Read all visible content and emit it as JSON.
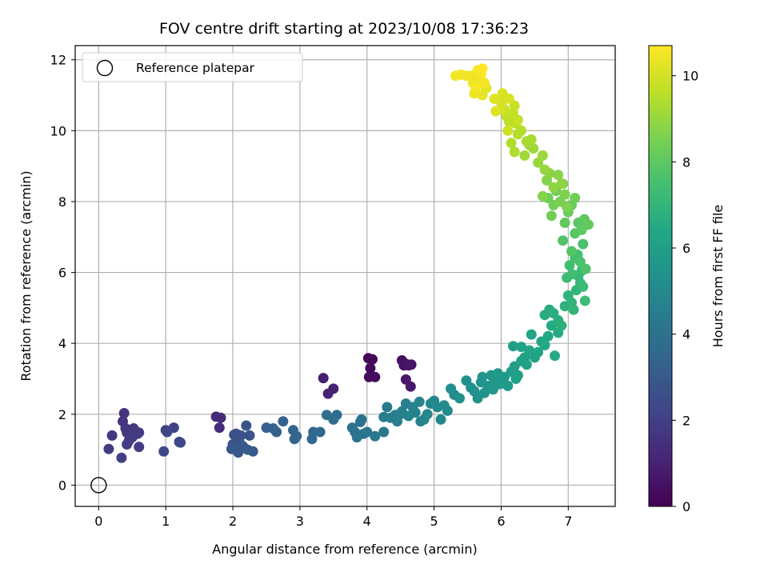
{
  "chart_data": {
    "type": "scatter",
    "title": "FOV centre drift starting at 2023/10/08 17:36:23",
    "xlabel": "Angular distance from reference (arcmin)",
    "ylabel": "Rotation from reference (arcmin)",
    "xlim": [
      -0.35,
      7.7
    ],
    "ylim": [
      -0.6,
      12.4
    ],
    "xticks": [
      0,
      1,
      2,
      3,
      4,
      5,
      6,
      7
    ],
    "yticks": [
      0,
      2,
      4,
      6,
      8,
      10,
      12
    ],
    "grid": true,
    "legend": {
      "placement": "top-left",
      "entries": [
        "Reference platepar"
      ]
    },
    "reference_point": {
      "x": 0,
      "y": 0
    },
    "colorbar": {
      "label": "Hours from first FF file",
      "range": [
        0,
        10.7
      ],
      "ticks": [
        0,
        2,
        4,
        6,
        8,
        10
      ],
      "colormap": "viridis"
    },
    "points": [
      {
        "x": 4.02,
        "y": 3.58,
        "h": 0.1
      },
      {
        "x": 4.08,
        "y": 3.55,
        "h": 0.2
      },
      {
        "x": 4.05,
        "y": 3.3,
        "h": 0.2
      },
      {
        "x": 4.03,
        "y": 3.05,
        "h": 0.3
      },
      {
        "x": 4.12,
        "y": 3.05,
        "h": 0.3
      },
      {
        "x": 4.52,
        "y": 3.52,
        "h": 0.4
      },
      {
        "x": 4.58,
        "y": 3.42,
        "h": 0.4
      },
      {
        "x": 4.55,
        "y": 3.38,
        "h": 0.5
      },
      {
        "x": 4.66,
        "y": 3.4,
        "h": 0.5
      },
      {
        "x": 4.62,
        "y": 3.38,
        "h": 0.6
      },
      {
        "x": 4.58,
        "y": 2.98,
        "h": 0.7
      },
      {
        "x": 4.65,
        "y": 2.78,
        "h": 0.7
      },
      {
        "x": 3.35,
        "y": 3.02,
        "h": 0.9
      },
      {
        "x": 3.5,
        "y": 2.72,
        "h": 1.0
      },
      {
        "x": 3.42,
        "y": 2.58,
        "h": 1.0
      },
      {
        "x": 1.75,
        "y": 1.93,
        "h": 1.3
      },
      {
        "x": 1.82,
        "y": 1.9,
        "h": 1.3
      },
      {
        "x": 1.8,
        "y": 1.62,
        "h": 1.4
      },
      {
        "x": 0.38,
        "y": 2.03,
        "h": 1.6
      },
      {
        "x": 0.36,
        "y": 1.8,
        "h": 1.6
      },
      {
        "x": 0.2,
        "y": 1.4,
        "h": 1.7
      },
      {
        "x": 0.4,
        "y": 1.6,
        "h": 1.7
      },
      {
        "x": 0.42,
        "y": 1.48,
        "h": 1.7
      },
      {
        "x": 0.52,
        "y": 1.6,
        "h": 1.8
      },
      {
        "x": 0.58,
        "y": 1.45,
        "h": 1.8
      },
      {
        "x": 0.6,
        "y": 1.48,
        "h": 1.8
      },
      {
        "x": 0.5,
        "y": 1.35,
        "h": 1.8
      },
      {
        "x": 0.45,
        "y": 1.25,
        "h": 1.9
      },
      {
        "x": 0.42,
        "y": 1.15,
        "h": 1.9
      },
      {
        "x": 0.6,
        "y": 1.08,
        "h": 1.9
      },
      {
        "x": 0.15,
        "y": 1.02,
        "h": 1.9
      },
      {
        "x": 0.34,
        "y": 0.77,
        "h": 2.0
      },
      {
        "x": 1.0,
        "y": 1.55,
        "h": 2.1
      },
      {
        "x": 1.12,
        "y": 1.62,
        "h": 2.1
      },
      {
        "x": 1.02,
        "y": 1.5,
        "h": 2.2
      },
      {
        "x": 1.2,
        "y": 1.22,
        "h": 2.2
      },
      {
        "x": 1.22,
        "y": 1.2,
        "h": 2.3
      },
      {
        "x": 0.97,
        "y": 0.95,
        "h": 2.3
      },
      {
        "x": 2.02,
        "y": 1.42,
        "h": 2.6
      },
      {
        "x": 2.05,
        "y": 1.45,
        "h": 2.6
      },
      {
        "x": 2.12,
        "y": 1.4,
        "h": 2.7
      },
      {
        "x": 2.2,
        "y": 1.68,
        "h": 2.7
      },
      {
        "x": 2.25,
        "y": 1.4,
        "h": 2.7
      },
      {
        "x": 2.1,
        "y": 1.2,
        "h": 2.8
      },
      {
        "x": 2.0,
        "y": 1.15,
        "h": 2.8
      },
      {
        "x": 1.98,
        "y": 1.02,
        "h": 2.9
      },
      {
        "x": 2.08,
        "y": 0.92,
        "h": 2.9
      },
      {
        "x": 2.15,
        "y": 1.1,
        "h": 2.9
      },
      {
        "x": 2.22,
        "y": 1.0,
        "h": 3.0
      },
      {
        "x": 2.3,
        "y": 0.95,
        "h": 3.0
      },
      {
        "x": 2.5,
        "y": 1.62,
        "h": 3.3
      },
      {
        "x": 2.6,
        "y": 1.6,
        "h": 3.3
      },
      {
        "x": 2.65,
        "y": 1.5,
        "h": 3.4
      },
      {
        "x": 2.75,
        "y": 1.8,
        "h": 3.4
      },
      {
        "x": 2.9,
        "y": 1.55,
        "h": 3.5
      },
      {
        "x": 2.95,
        "y": 1.38,
        "h": 3.5
      },
      {
        "x": 2.92,
        "y": 1.3,
        "h": 3.5
      },
      {
        "x": 3.2,
        "y": 1.5,
        "h": 3.6
      },
      {
        "x": 3.18,
        "y": 1.3,
        "h": 3.6
      },
      {
        "x": 3.3,
        "y": 1.5,
        "h": 3.7
      },
      {
        "x": 3.4,
        "y": 1.98,
        "h": 3.8
      },
      {
        "x": 3.55,
        "y": 1.98,
        "h": 3.8
      },
      {
        "x": 3.5,
        "y": 1.85,
        "h": 3.9
      },
      {
        "x": 3.78,
        "y": 1.62,
        "h": 4.0
      },
      {
        "x": 3.82,
        "y": 1.5,
        "h": 4.0
      },
      {
        "x": 3.85,
        "y": 1.35,
        "h": 4.1
      },
      {
        "x": 3.9,
        "y": 1.78,
        "h": 4.1
      },
      {
        "x": 3.92,
        "y": 1.85,
        "h": 4.1
      },
      {
        "x": 3.95,
        "y": 1.45,
        "h": 4.2
      },
      {
        "x": 4.0,
        "y": 1.5,
        "h": 4.2
      },
      {
        "x": 4.12,
        "y": 1.38,
        "h": 4.3
      },
      {
        "x": 4.25,
        "y": 1.5,
        "h": 4.3
      },
      {
        "x": 4.25,
        "y": 1.92,
        "h": 4.4
      },
      {
        "x": 4.3,
        "y": 2.2,
        "h": 4.4
      },
      {
        "x": 4.35,
        "y": 1.9,
        "h": 4.5
      },
      {
        "x": 4.42,
        "y": 1.98,
        "h": 4.5
      },
      {
        "x": 4.45,
        "y": 1.8,
        "h": 4.5
      },
      {
        "x": 4.5,
        "y": 2.0,
        "h": 4.6
      },
      {
        "x": 4.52,
        "y": 2.08,
        "h": 4.6
      },
      {
        "x": 4.58,
        "y": 2.3,
        "h": 4.6
      },
      {
        "x": 4.62,
        "y": 1.95,
        "h": 4.7
      },
      {
        "x": 4.68,
        "y": 2.2,
        "h": 4.7
      },
      {
        "x": 4.72,
        "y": 2.05,
        "h": 4.7
      },
      {
        "x": 4.78,
        "y": 2.35,
        "h": 4.8
      },
      {
        "x": 4.8,
        "y": 1.8,
        "h": 4.8
      },
      {
        "x": 4.85,
        "y": 1.85,
        "h": 4.8
      },
      {
        "x": 4.9,
        "y": 2.0,
        "h": 4.9
      },
      {
        "x": 4.95,
        "y": 2.3,
        "h": 4.9
      },
      {
        "x": 5.0,
        "y": 2.38,
        "h": 5.0
      },
      {
        "x": 5.05,
        "y": 2.2,
        "h": 5.0
      },
      {
        "x": 5.1,
        "y": 1.85,
        "h": 5.0
      },
      {
        "x": 5.15,
        "y": 2.25,
        "h": 5.1
      },
      {
        "x": 5.2,
        "y": 2.1,
        "h": 5.1
      },
      {
        "x": 5.25,
        "y": 2.72,
        "h": 5.2
      },
      {
        "x": 5.3,
        "y": 2.55,
        "h": 5.2
      },
      {
        "x": 5.38,
        "y": 2.45,
        "h": 5.3
      },
      {
        "x": 5.48,
        "y": 2.95,
        "h": 5.3
      },
      {
        "x": 5.55,
        "y": 2.75,
        "h": 5.4
      },
      {
        "x": 5.6,
        "y": 2.65,
        "h": 5.4
      },
      {
        "x": 5.65,
        "y": 2.45,
        "h": 5.4
      },
      {
        "x": 5.7,
        "y": 2.9,
        "h": 5.5
      },
      {
        "x": 5.72,
        "y": 3.05,
        "h": 5.5
      },
      {
        "x": 5.75,
        "y": 2.6,
        "h": 5.5
      },
      {
        "x": 5.8,
        "y": 2.8,
        "h": 5.6
      },
      {
        "x": 5.85,
        "y": 3.1,
        "h": 5.6
      },
      {
        "x": 5.88,
        "y": 2.7,
        "h": 5.6
      },
      {
        "x": 5.9,
        "y": 2.95,
        "h": 5.7
      },
      {
        "x": 5.95,
        "y": 3.15,
        "h": 5.7
      },
      {
        "x": 5.98,
        "y": 2.85,
        "h": 5.7
      },
      {
        "x": 6.02,
        "y": 2.95,
        "h": 5.8
      },
      {
        "x": 6.05,
        "y": 3.05,
        "h": 5.8
      },
      {
        "x": 6.1,
        "y": 2.8,
        "h": 5.8
      },
      {
        "x": 6.15,
        "y": 3.2,
        "h": 5.9
      },
      {
        "x": 6.18,
        "y": 3.92,
        "h": 5.9
      },
      {
        "x": 6.2,
        "y": 3.35,
        "h": 5.9
      },
      {
        "x": 6.22,
        "y": 3.0,
        "h": 6.0
      },
      {
        "x": 6.25,
        "y": 3.1,
        "h": 6.0
      },
      {
        "x": 6.3,
        "y": 3.5,
        "h": 6.0
      },
      {
        "x": 6.3,
        "y": 3.9,
        "h": 6.1
      },
      {
        "x": 6.35,
        "y": 3.6,
        "h": 6.1
      },
      {
        "x": 6.38,
        "y": 3.4,
        "h": 6.1
      },
      {
        "x": 6.42,
        "y": 3.8,
        "h": 6.2
      },
      {
        "x": 6.45,
        "y": 4.25,
        "h": 6.2
      },
      {
        "x": 6.5,
        "y": 3.6,
        "h": 6.2
      },
      {
        "x": 6.55,
        "y": 3.75,
        "h": 6.3
      },
      {
        "x": 6.6,
        "y": 4.05,
        "h": 6.3
      },
      {
        "x": 6.65,
        "y": 3.95,
        "h": 6.4
      },
      {
        "x": 6.7,
        "y": 4.2,
        "h": 6.4
      },
      {
        "x": 6.75,
        "y": 4.5,
        "h": 6.5
      },
      {
        "x": 6.8,
        "y": 3.65,
        "h": 6.5
      },
      {
        "x": 6.85,
        "y": 4.3,
        "h": 6.5
      },
      {
        "x": 6.65,
        "y": 4.8,
        "h": 6.6
      },
      {
        "x": 6.72,
        "y": 4.95,
        "h": 6.6
      },
      {
        "x": 6.78,
        "y": 4.85,
        "h": 6.7
      },
      {
        "x": 6.85,
        "y": 4.65,
        "h": 6.7
      },
      {
        "x": 6.9,
        "y": 4.5,
        "h": 6.8
      },
      {
        "x": 6.95,
        "y": 5.05,
        "h": 6.8
      },
      {
        "x": 7.0,
        "y": 5.35,
        "h": 6.9
      },
      {
        "x": 7.05,
        "y": 5.15,
        "h": 6.9
      },
      {
        "x": 7.08,
        "y": 4.95,
        "h": 7.0
      },
      {
        "x": 7.12,
        "y": 5.5,
        "h": 7.0
      },
      {
        "x": 7.15,
        "y": 5.9,
        "h": 7.1
      },
      {
        "x": 7.18,
        "y": 5.7,
        "h": 7.1
      },
      {
        "x": 7.2,
        "y": 6.05,
        "h": 7.2
      },
      {
        "x": 7.22,
        "y": 5.6,
        "h": 7.2
      },
      {
        "x": 7.25,
        "y": 5.2,
        "h": 7.3
      },
      {
        "x": 6.98,
        "y": 5.85,
        "h": 7.3
      },
      {
        "x": 7.02,
        "y": 6.2,
        "h": 7.4
      },
      {
        "x": 7.06,
        "y": 5.95,
        "h": 7.4
      },
      {
        "x": 7.1,
        "y": 6.4,
        "h": 7.5
      },
      {
        "x": 7.14,
        "y": 6.5,
        "h": 7.5
      },
      {
        "x": 7.18,
        "y": 6.3,
        "h": 7.6
      },
      {
        "x": 7.22,
        "y": 6.8,
        "h": 7.6
      },
      {
        "x": 7.26,
        "y": 6.1,
        "h": 7.7
      },
      {
        "x": 6.92,
        "y": 6.9,
        "h": 7.7
      },
      {
        "x": 7.05,
        "y": 6.6,
        "h": 7.8
      },
      {
        "x": 7.1,
        "y": 7.1,
        "h": 7.9
      },
      {
        "x": 7.15,
        "y": 7.4,
        "h": 7.9
      },
      {
        "x": 7.2,
        "y": 7.2,
        "h": 8.0
      },
      {
        "x": 7.24,
        "y": 7.5,
        "h": 8.0
      },
      {
        "x": 7.3,
        "y": 7.35,
        "h": 8.1
      },
      {
        "x": 6.95,
        "y": 7.4,
        "h": 8.1
      },
      {
        "x": 7.0,
        "y": 7.7,
        "h": 8.2
      },
      {
        "x": 7.05,
        "y": 7.9,
        "h": 8.2
      },
      {
        "x": 7.1,
        "y": 8.1,
        "h": 8.3
      },
      {
        "x": 6.7,
        "y": 8.1,
        "h": 8.3
      },
      {
        "x": 6.75,
        "y": 7.6,
        "h": 8.4
      },
      {
        "x": 6.78,
        "y": 7.9,
        "h": 8.4
      },
      {
        "x": 6.82,
        "y": 8.3,
        "h": 8.4
      },
      {
        "x": 6.88,
        "y": 8.0,
        "h": 8.5
      },
      {
        "x": 6.92,
        "y": 8.5,
        "h": 8.5
      },
      {
        "x": 6.95,
        "y": 8.2,
        "h": 8.6
      },
      {
        "x": 6.98,
        "y": 7.85,
        "h": 8.6
      },
      {
        "x": 6.62,
        "y": 8.15,
        "h": 8.7
      },
      {
        "x": 6.68,
        "y": 8.6,
        "h": 8.7
      },
      {
        "x": 6.72,
        "y": 8.8,
        "h": 8.8
      },
      {
        "x": 6.85,
        "y": 8.75,
        "h": 8.8
      },
      {
        "x": 6.9,
        "y": 8.5,
        "h": 8.9
      },
      {
        "x": 6.78,
        "y": 8.4,
        "h": 8.9
      },
      {
        "x": 6.65,
        "y": 8.9,
        "h": 9.0
      },
      {
        "x": 6.55,
        "y": 9.1,
        "h": 9.0
      },
      {
        "x": 6.62,
        "y": 9.3,
        "h": 9.1
      },
      {
        "x": 6.48,
        "y": 9.5,
        "h": 9.1
      },
      {
        "x": 6.42,
        "y": 9.6,
        "h": 9.2
      },
      {
        "x": 6.35,
        "y": 9.3,
        "h": 9.2
      },
      {
        "x": 6.38,
        "y": 9.7,
        "h": 9.3
      },
      {
        "x": 6.45,
        "y": 9.75,
        "h": 9.3
      },
      {
        "x": 6.2,
        "y": 9.4,
        "h": 9.4
      },
      {
        "x": 6.15,
        "y": 9.65,
        "h": 9.4
      },
      {
        "x": 6.25,
        "y": 9.9,
        "h": 9.5
      },
      {
        "x": 6.3,
        "y": 10.0,
        "h": 9.5
      },
      {
        "x": 6.22,
        "y": 10.2,
        "h": 9.6
      },
      {
        "x": 6.12,
        "y": 10.25,
        "h": 9.6
      },
      {
        "x": 6.18,
        "y": 10.5,
        "h": 9.7
      },
      {
        "x": 6.08,
        "y": 10.4,
        "h": 9.7
      },
      {
        "x": 6.25,
        "y": 10.3,
        "h": 9.8
      },
      {
        "x": 6.2,
        "y": 10.7,
        "h": 9.8
      },
      {
        "x": 6.1,
        "y": 10.0,
        "h": 9.9
      },
      {
        "x": 6.05,
        "y": 10.6,
        "h": 9.9
      },
      {
        "x": 6.0,
        "y": 10.8,
        "h": 10.0
      },
      {
        "x": 5.98,
        "y": 10.6,
        "h": 10.0
      },
      {
        "x": 6.02,
        "y": 11.05,
        "h": 10.1
      },
      {
        "x": 6.12,
        "y": 10.9,
        "h": 10.1
      },
      {
        "x": 5.92,
        "y": 10.55,
        "h": 10.2
      },
      {
        "x": 5.9,
        "y": 10.9,
        "h": 10.2
      },
      {
        "x": 5.78,
        "y": 11.2,
        "h": 10.3
      },
      {
        "x": 5.72,
        "y": 11.0,
        "h": 10.3
      },
      {
        "x": 5.68,
        "y": 11.3,
        "h": 10.3
      },
      {
        "x": 5.6,
        "y": 11.05,
        "h": 10.4
      },
      {
        "x": 5.62,
        "y": 11.5,
        "h": 10.4
      },
      {
        "x": 5.55,
        "y": 11.55,
        "h": 10.4
      },
      {
        "x": 5.48,
        "y": 11.55,
        "h": 10.5
      },
      {
        "x": 5.4,
        "y": 11.58,
        "h": 10.5
      },
      {
        "x": 5.32,
        "y": 11.55,
        "h": 10.5
      },
      {
        "x": 5.58,
        "y": 11.35,
        "h": 10.5
      },
      {
        "x": 5.65,
        "y": 11.7,
        "h": 10.6
      },
      {
        "x": 5.7,
        "y": 11.6,
        "h": 10.6
      },
      {
        "x": 5.75,
        "y": 11.35,
        "h": 10.6
      },
      {
        "x": 5.62,
        "y": 11.2,
        "h": 10.6
      },
      {
        "x": 5.72,
        "y": 11.75,
        "h": 10.7
      }
    ]
  }
}
